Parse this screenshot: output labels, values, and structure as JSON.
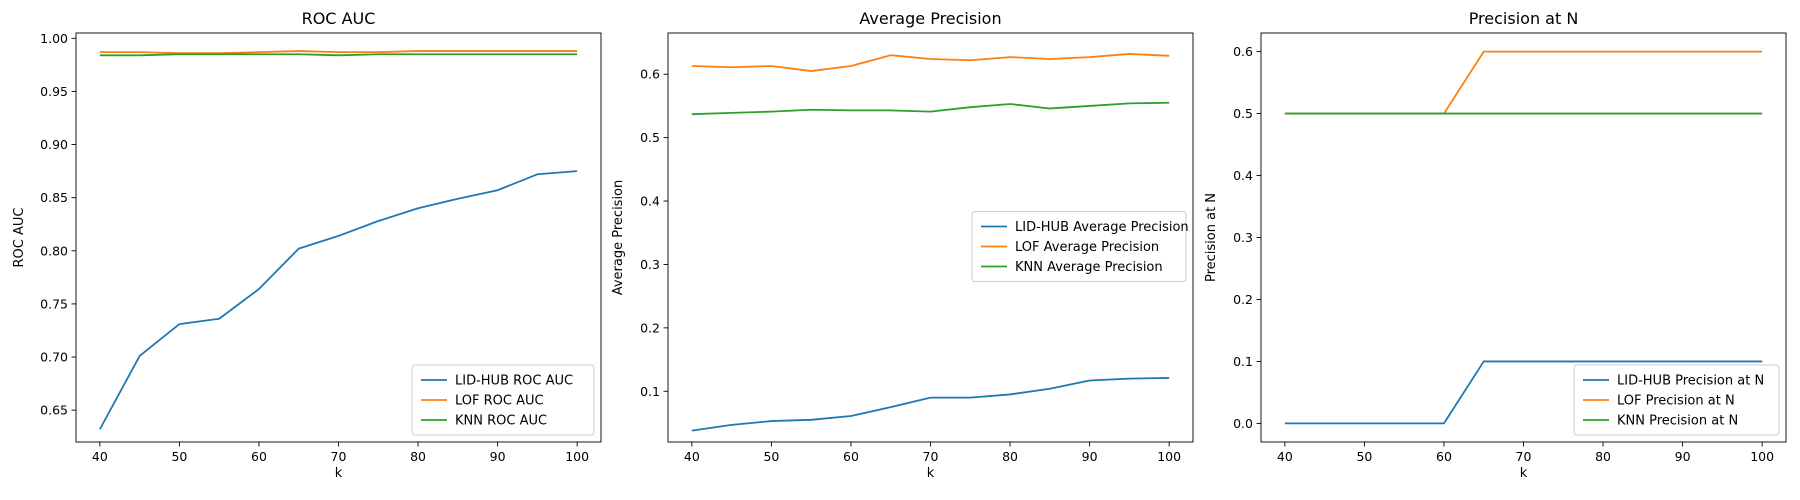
{
  "chart_data": [
    {
      "type": "line",
      "title": "ROC AUC",
      "xlabel": "k",
      "ylabel": "ROC AUC",
      "xlim": [
        37,
        103
      ],
      "ylim": [
        0.62,
        1.005
      ],
      "xticks": [
        40,
        50,
        60,
        70,
        80,
        90,
        100
      ],
      "yticks": [
        0.65,
        0.7,
        0.75,
        0.8,
        0.85,
        0.9,
        0.95,
        1.0
      ],
      "ytick_decimals": 2,
      "legend": "lower-right",
      "x": [
        40,
        45,
        50,
        55,
        60,
        65,
        70,
        75,
        80,
        85,
        90,
        95,
        100
      ],
      "series": [
        {
          "name": "LID-HUB ROC AUC",
          "color": "#1f77b4",
          "values": [
            0.632,
            0.701,
            0.731,
            0.736,
            0.764,
            0.802,
            0.814,
            0.828,
            0.84,
            0.849,
            0.857,
            0.872,
            0.875
          ]
        },
        {
          "name": "LOF ROC AUC",
          "color": "#ff7f0e",
          "values": [
            0.987,
            0.987,
            0.986,
            0.986,
            0.987,
            0.988,
            0.987,
            0.987,
            0.988,
            0.988,
            0.988,
            0.988,
            0.988
          ]
        },
        {
          "name": "KNN ROC AUC",
          "color": "#2ca02c",
          "values": [
            0.984,
            0.984,
            0.985,
            0.985,
            0.985,
            0.985,
            0.984,
            0.985,
            0.985,
            0.985,
            0.985,
            0.985,
            0.985
          ]
        }
      ]
    },
    {
      "type": "line",
      "title": "Average Precision",
      "xlabel": "k",
      "ylabel": "Average Precision",
      "xlim": [
        37,
        103
      ],
      "ylim": [
        0.02,
        0.665
      ],
      "xticks": [
        40,
        50,
        60,
        70,
        80,
        90,
        100
      ],
      "yticks": [
        0.1,
        0.2,
        0.3,
        0.4,
        0.5,
        0.6
      ],
      "ytick_decimals": 1,
      "legend": "center-right",
      "x": [
        40,
        45,
        50,
        55,
        60,
        65,
        70,
        75,
        80,
        85,
        90,
        95,
        100
      ],
      "series": [
        {
          "name": "LID-HUB Average Precision",
          "color": "#1f77b4",
          "values": [
            0.038,
            0.047,
            0.053,
            0.055,
            0.061,
            0.075,
            0.09,
            0.09,
            0.095,
            0.104,
            0.117,
            0.12,
            0.121
          ]
        },
        {
          "name": "LOF Average Precision",
          "color": "#ff7f0e",
          "values": [
            0.613,
            0.611,
            0.613,
            0.605,
            0.613,
            0.63,
            0.624,
            0.622,
            0.627,
            0.624,
            0.627,
            0.632,
            0.629
          ]
        },
        {
          "name": "KNN Average Precision",
          "color": "#2ca02c",
          "values": [
            0.537,
            0.539,
            0.541,
            0.544,
            0.543,
            0.543,
            0.541,
            0.548,
            0.553,
            0.546,
            0.55,
            0.554,
            0.555
          ]
        }
      ]
    },
    {
      "type": "line",
      "title": "Precision at N",
      "xlabel": "k",
      "ylabel": "Precision at N",
      "xlim": [
        37,
        103
      ],
      "ylim": [
        -0.03,
        0.63
      ],
      "xticks": [
        40,
        50,
        60,
        70,
        80,
        90,
        100
      ],
      "yticks": [
        0.0,
        0.1,
        0.2,
        0.3,
        0.4,
        0.5,
        0.6
      ],
      "ytick_decimals": 1,
      "legend": "lower-right",
      "x": [
        40,
        45,
        50,
        55,
        60,
        65,
        70,
        75,
        80,
        85,
        90,
        95,
        100
      ],
      "series": [
        {
          "name": "LID-HUB Precision at N",
          "color": "#1f77b4",
          "values": [
            0.0,
            0.0,
            0.0,
            0.0,
            0.0,
            0.1,
            0.1,
            0.1,
            0.1,
            0.1,
            0.1,
            0.1,
            0.1
          ]
        },
        {
          "name": "LOF Precision at N",
          "color": "#ff7f0e",
          "values": [
            0.5,
            0.5,
            0.5,
            0.5,
            0.5,
            0.6,
            0.6,
            0.6,
            0.6,
            0.6,
            0.6,
            0.6,
            0.6
          ]
        },
        {
          "name": "KNN Precision at N",
          "color": "#2ca02c",
          "values": [
            0.5,
            0.5,
            0.5,
            0.5,
            0.5,
            0.5,
            0.5,
            0.5,
            0.5,
            0.5,
            0.5,
            0.5,
            0.5
          ]
        }
      ]
    }
  ]
}
